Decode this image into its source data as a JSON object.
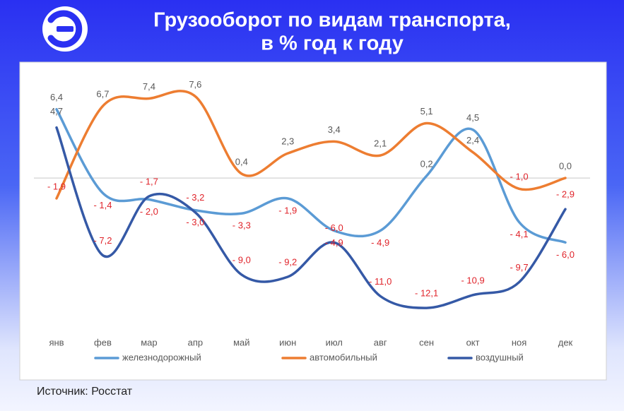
{
  "chart_data": {
    "type": "line",
    "title": [
      "Грузооборот по видам транспорта,",
      "в % год к году"
    ],
    "source": "Источник: Росстат",
    "categories": [
      "янв",
      "фев",
      "мар",
      "апр",
      "май",
      "июн",
      "июл",
      "авг",
      "сен",
      "окт",
      "ноя",
      "дек"
    ],
    "ylim": [
      -14,
      10
    ],
    "grid": false,
    "legend": "bottom",
    "smooth": true,
    "series": [
      {
        "name": "железнодорожный",
        "color": "#5b9bd5",
        "values": [
          6.4,
          -1.4,
          -2.0,
          -3.0,
          -3.3,
          -1.9,
          -4.9,
          -4.9,
          0.2,
          4.5,
          -4.1,
          -6.0
        ],
        "value_labels": [
          "6,4",
          "- 1,4",
          "- 2,0",
          "- 3,0",
          "- 3,3",
          "- 1,9",
          "- 4,9",
          "- 4,9",
          "0,2",
          "4,5",
          "- 4,1",
          "- 6,0"
        ]
      },
      {
        "name": "автомобильный",
        "color": "#ed7d31",
        "values": [
          -1.9,
          6.7,
          7.4,
          7.6,
          0.4,
          2.3,
          3.4,
          2.1,
          5.1,
          2.4,
          -1.0,
          0.0
        ],
        "value_labels": [
          "- 1,9",
          "6,7",
          "7,4",
          "7,6",
          "0,4",
          "2,3",
          "3,4",
          "2,1",
          "5,1",
          "2,4",
          "- 1,0",
          "0,0"
        ]
      },
      {
        "name": "воздушный",
        "color": "#3559a6",
        "values": [
          4.7,
          -7.2,
          -1.7,
          -3.2,
          -9.0,
          -9.2,
          -6.0,
          -11.0,
          -12.1,
          -10.9,
          -9.7,
          -2.9
        ],
        "value_labels": [
          "4,7",
          "- 7,2",
          "- 1,7",
          "- 3,2",
          "- 9,0",
          "- 9,2",
          "- 6,0",
          "- 11,0",
          "- 12,1",
          "- 10,9",
          "- 9,7",
          "- 2,9"
        ]
      }
    ]
  }
}
